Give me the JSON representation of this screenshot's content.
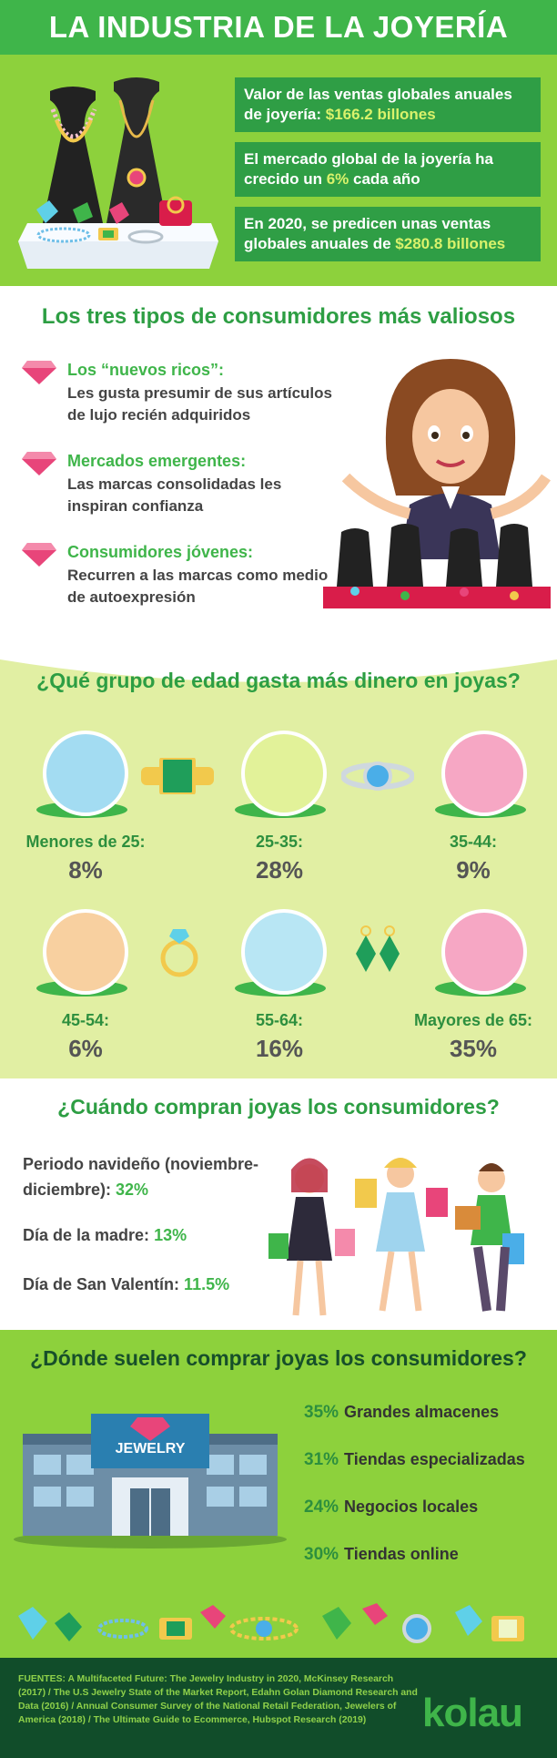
{
  "header": {
    "title": "LA INDUSTRIA DE LA JOYERÍA"
  },
  "stats": [
    {
      "pre": "Valor de las ventas globales anuales de joyería: ",
      "highlight": "$166.2 billones",
      "post": ""
    },
    {
      "pre": "El mercado global de la joyería ha crecido un ",
      "highlight": "6%",
      "post": " cada año"
    },
    {
      "pre": "En 2020, se predicen unas ventas globales anuales de ",
      "highlight": "$280.8 billones",
      "post": ""
    }
  ],
  "types": {
    "title": "Los tres tipos de consumidores más valiosos",
    "items": [
      {
        "title": "Los “nuevos ricos”:",
        "desc": "Les gusta presumir de sus artículos de lujo recién adquiridos"
      },
      {
        "title": "Mercados emergentes:",
        "desc": "Las marcas consolidadas les inspiran confianza"
      },
      {
        "title": "Consumidores jóvenes:",
        "desc": "Recurren a las marcas como medio de autoexpresión"
      }
    ]
  },
  "age": {
    "title": "¿Qué grupo de edad gasta más dinero en joyas?",
    "groups": [
      {
        "label": "Menores de 25:",
        "value": "8%"
      },
      {
        "label": "25-35:",
        "value": "28%"
      },
      {
        "label": "35-44:",
        "value": "9%"
      },
      {
        "label": "45-54:",
        "value": "6%"
      },
      {
        "label": "55-64:",
        "value": "16%"
      },
      {
        "label": "Mayores de 65:",
        "value": "35%"
      }
    ]
  },
  "when": {
    "title": "¿Cuándo compran joyas los consumidores?",
    "items": [
      {
        "label": "Periodo navideño (noviembre-diciembre): ",
        "value": "32%"
      },
      {
        "label": "Día de la madre: ",
        "value": "13%"
      },
      {
        "label": "Día de San Valentín: ",
        "value": "11.5%"
      }
    ]
  },
  "where": {
    "title": "¿Dónde suelen comprar joyas los consumidores?",
    "store_sign": "JEWELRY",
    "items": [
      {
        "value": "35%",
        "label": "Grandes almacenes"
      },
      {
        "value": "31%",
        "label": "Tiendas especializadas"
      },
      {
        "value": "24%",
        "label": "Negocios locales"
      },
      {
        "value": "30%",
        "label": "Tiendas online"
      }
    ]
  },
  "footer": {
    "sources": "FUENTES: A Multifaceted Future: The Jewelry Industry in 2020, McKinsey Research (2017) / The U.S Jewelry State of the Market Report, Edahn Golan Diamond Research and Data (2016) / Annual Consumer Survey of the National Retail Federation, Jewelers of America (2018) / The Ultimate Guide to Ecommerce, Hubspot Research (2019)",
    "logo": "kolau"
  },
  "colors": {
    "green_dark": "#2d9e43",
    "green_light": "#8dd13c",
    "lime_bg": "#e1efa3",
    "footer": "#114d2a",
    "gem_pink": "#e8457a"
  }
}
